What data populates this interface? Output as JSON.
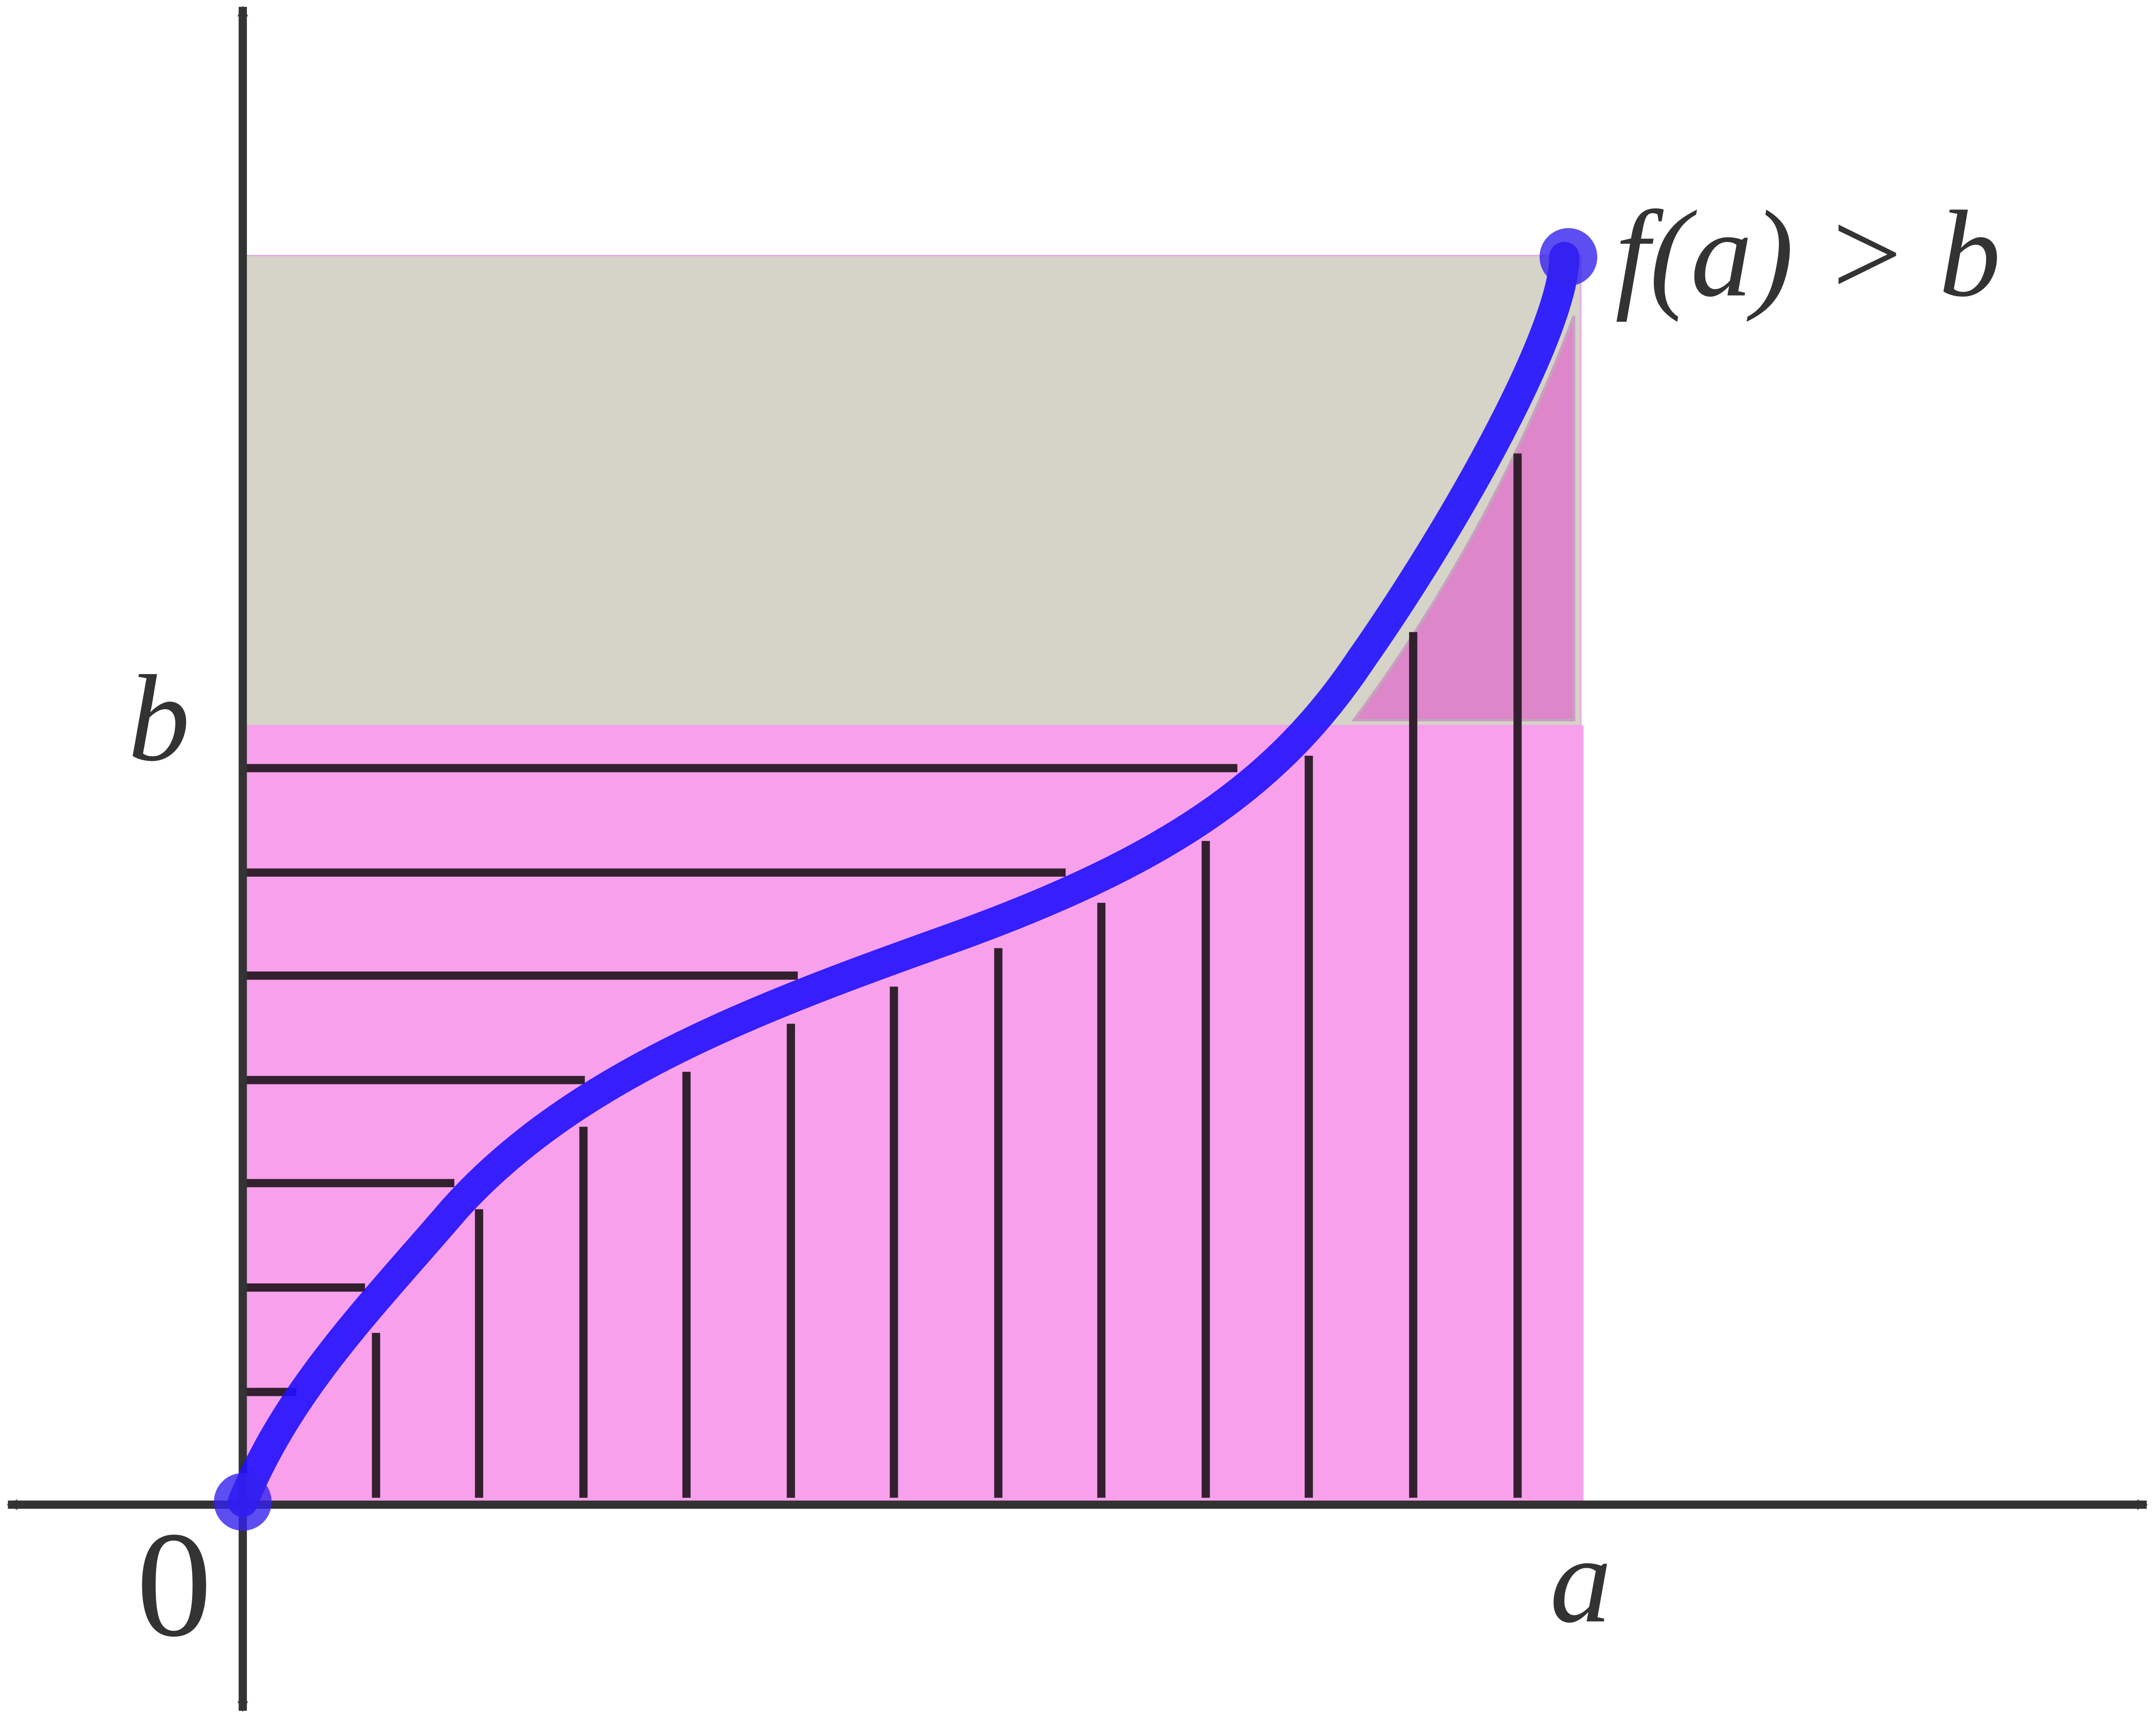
{
  "labels": {
    "y_level": "b",
    "origin": "0",
    "x_end": "a",
    "condition": "f(a) > b"
  }
}
